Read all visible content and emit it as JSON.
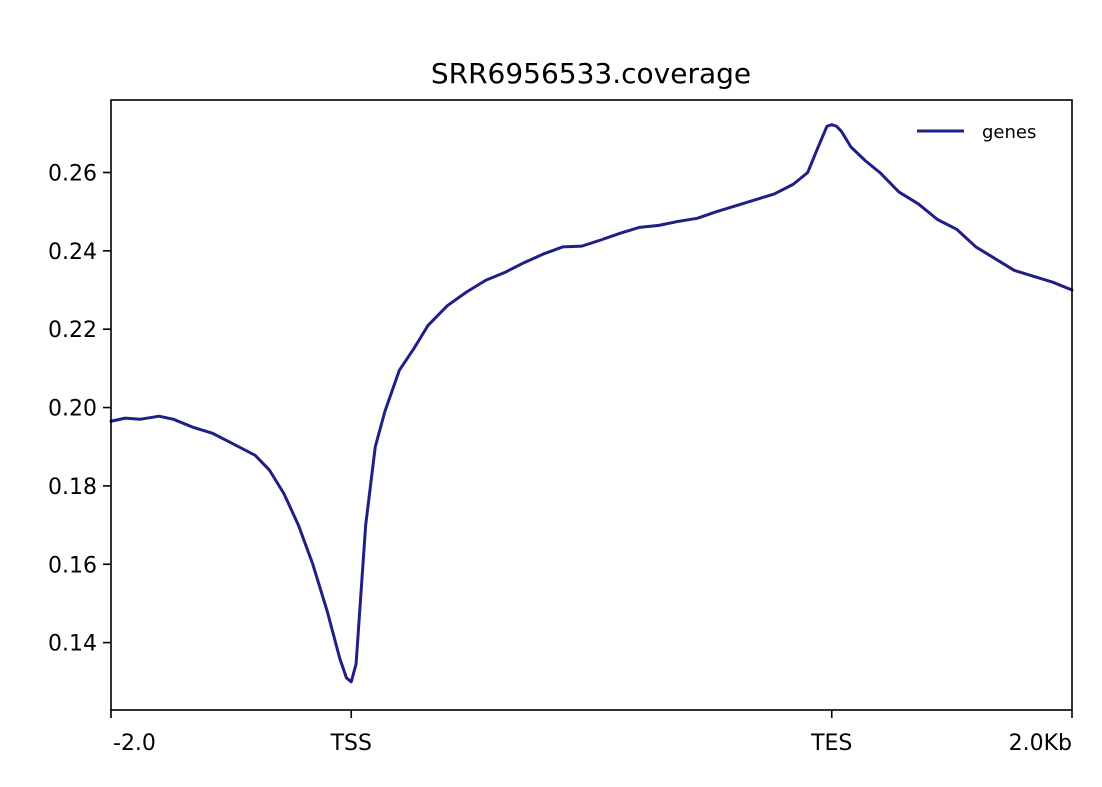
{
  "chart_data": {
    "type": "line",
    "title": "SRR6956533.coverage",
    "xlabel": "",
    "ylabel": "",
    "xlim": [
      0,
      100
    ],
    "ylim": [
      0.1228,
      0.2785
    ],
    "x_ticks": [
      {
        "value": 0,
        "label": "-2.0"
      },
      {
        "value": 25,
        "label": "TSS"
      },
      {
        "value": 75,
        "label": "TES"
      },
      {
        "value": 100,
        "label": "2.0Kb"
      }
    ],
    "y_ticks": [
      {
        "value": 0.14,
        "label": "0.14"
      },
      {
        "value": 0.16,
        "label": "0.16"
      },
      {
        "value": 0.18,
        "label": "0.18"
      },
      {
        "value": 0.2,
        "label": "0.20"
      },
      {
        "value": 0.22,
        "label": "0.22"
      },
      {
        "value": 0.24,
        "label": "0.24"
      },
      {
        "value": 0.26,
        "label": "0.26"
      }
    ],
    "grid": false,
    "legend_position": "top-right",
    "series": [
      {
        "name": "genes",
        "color": "#1f1f85",
        "x": [
          0,
          1.5,
          3,
          5,
          6.5,
          8.5,
          10.5,
          12.5,
          15,
          16.5,
          18,
          19.5,
          21,
          22.5,
          23.8,
          24.5,
          25,
          25.5,
          26.5,
          27.5,
          28.5,
          30,
          31.5,
          33,
          35,
          37,
          39,
          41,
          43,
          45,
          47,
          49,
          51,
          53,
          55,
          57,
          59,
          61,
          63,
          65,
          67,
          69,
          71,
          72.5,
          73.5,
          74.5,
          75,
          75.5,
          76,
          77,
          78.5,
          80,
          82,
          84,
          86,
          88,
          90,
          92,
          94,
          96,
          98,
          100
        ],
        "y": [
          0.1965,
          0.1973,
          0.197,
          0.1978,
          0.197,
          0.195,
          0.1935,
          0.191,
          0.1878,
          0.184,
          0.178,
          0.17,
          0.16,
          0.148,
          0.136,
          0.131,
          0.13,
          0.1345,
          0.17,
          0.19,
          0.199,
          0.2095,
          0.215,
          0.221,
          0.226,
          0.2295,
          0.2325,
          0.2345,
          0.237,
          0.2392,
          0.241,
          0.2412,
          0.2428,
          0.2445,
          0.246,
          0.2465,
          0.2475,
          0.2483,
          0.25,
          0.2515,
          0.253,
          0.2545,
          0.257,
          0.26,
          0.266,
          0.2718,
          0.2722,
          0.2718,
          0.2705,
          0.2665,
          0.263,
          0.26,
          0.255,
          0.252,
          0.248,
          0.2455,
          0.241,
          0.238,
          0.235,
          0.2335,
          0.232,
          0.23
        ]
      }
    ]
  }
}
